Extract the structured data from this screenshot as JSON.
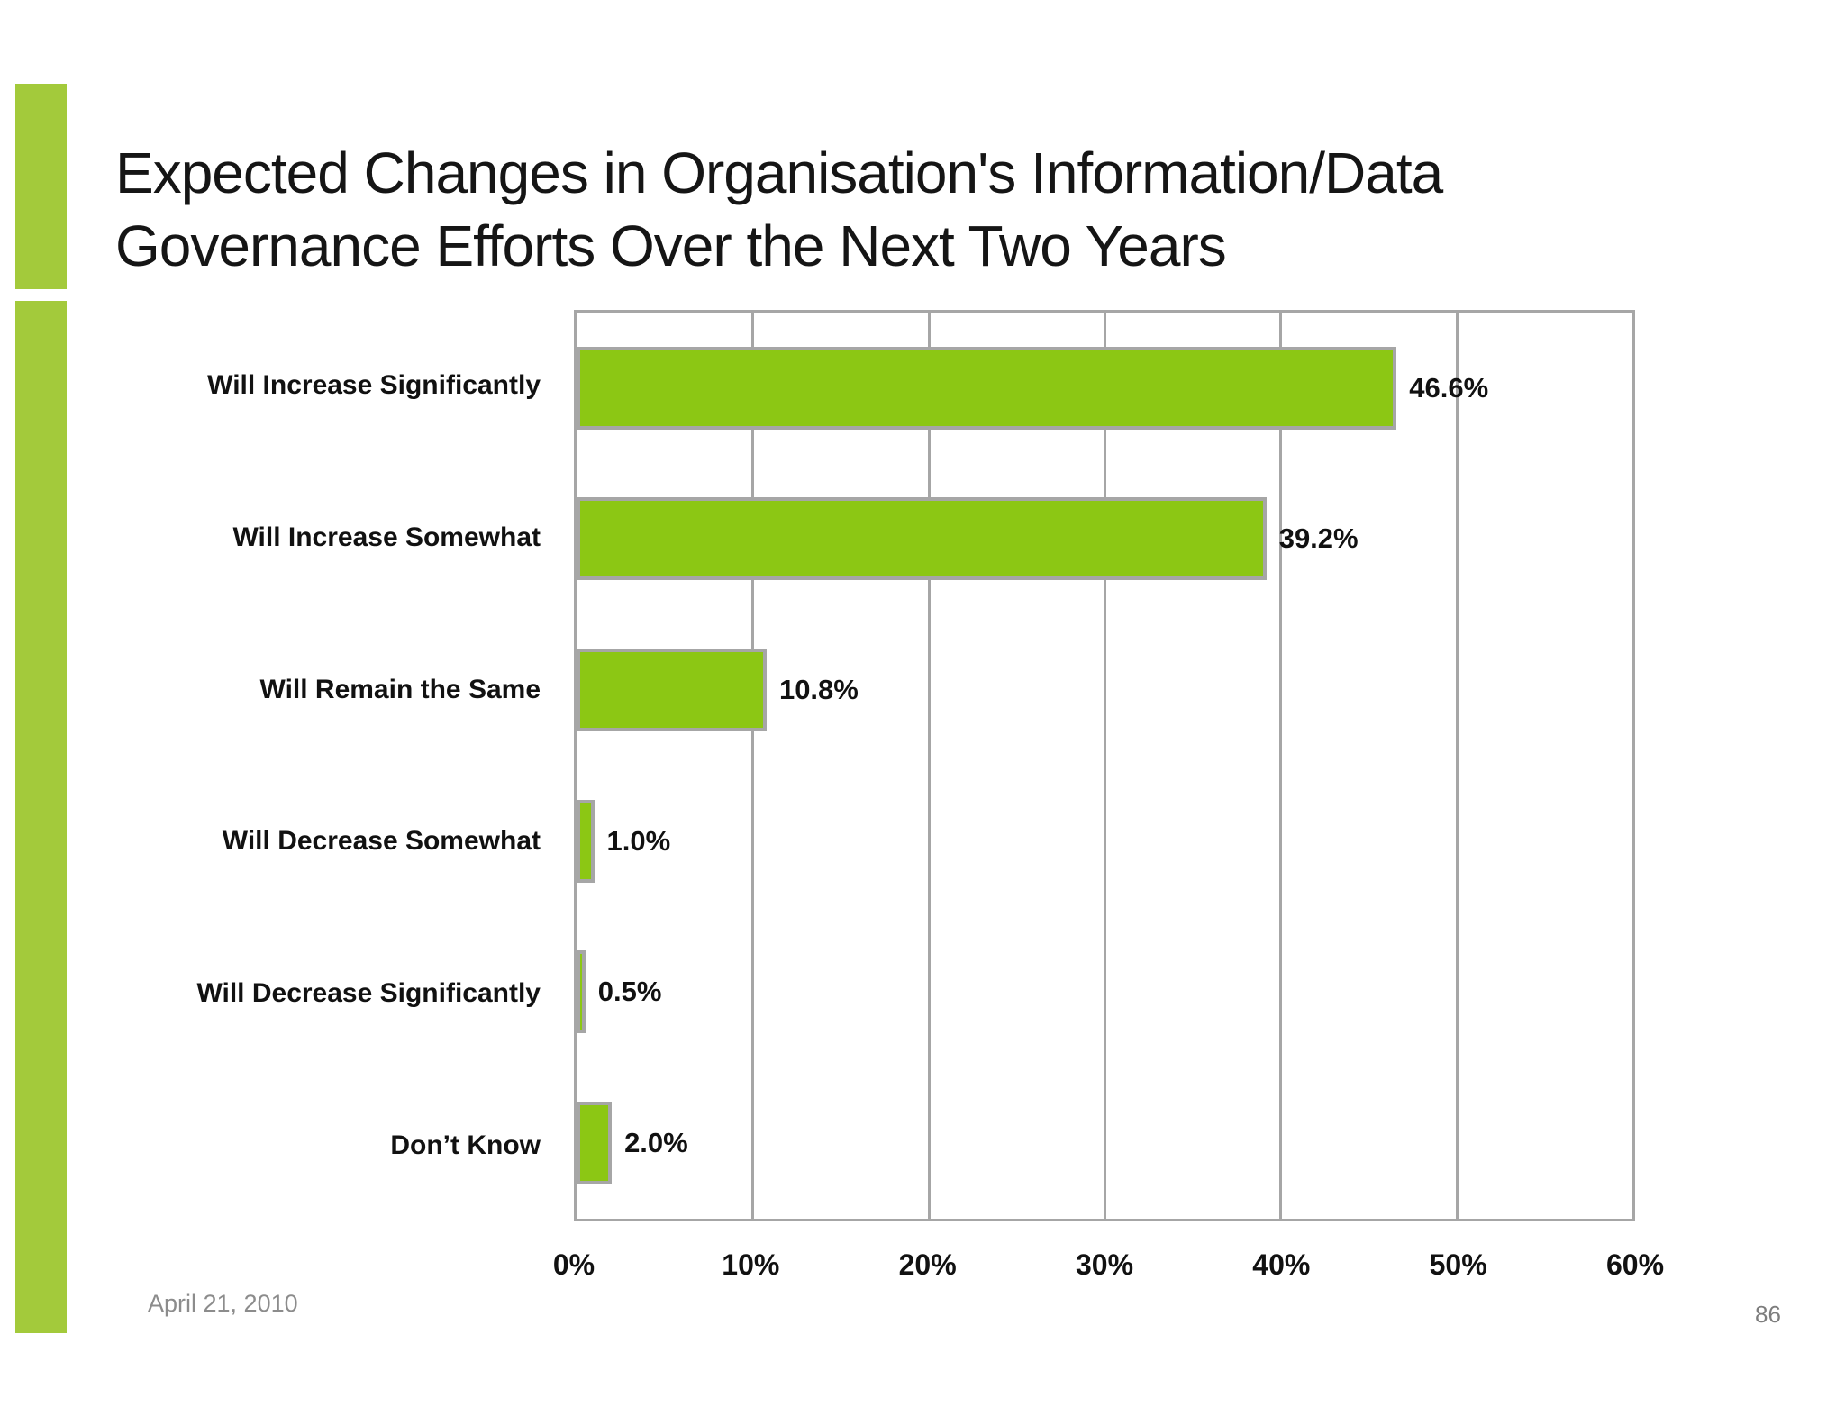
{
  "slide": {
    "title": "Expected Changes in Organisation's Information/Data Governance Efforts Over the Next Two Years",
    "footer": {
      "date": "April 21, 2010",
      "page_number": "86"
    }
  },
  "colors": {
    "bar_fill": "#8CC714",
    "bar_border": "#A6A6A6",
    "gridline": "#A6A6A6",
    "plot_border": "#A6A6A6",
    "accent_bar": "#A3CA3B",
    "title_text": "#151515",
    "label_text": "#111111",
    "footer_text": "#8C8C8C"
  },
  "chart_data": {
    "type": "bar",
    "orientation": "horizontal",
    "title": "",
    "xlabel": "",
    "ylabel": "",
    "categories": [
      "Will Increase Significantly",
      "Will Increase Somewhat",
      "Will Remain the Same",
      "Will Decrease Somewhat",
      "Will Decrease Significantly",
      "Don’t Know"
    ],
    "values": [
      46.6,
      39.2,
      10.8,
      1.0,
      0.5,
      2.0
    ],
    "value_labels": [
      "46.6%",
      "39.2%",
      "10.8%",
      "1.0%",
      "0.5%",
      "2.0%"
    ],
    "xlim": [
      0,
      60
    ],
    "x_ticks": [
      0,
      10,
      20,
      30,
      40,
      50,
      60
    ],
    "x_tick_labels": [
      "0%",
      "10%",
      "20%",
      "30%",
      "40%",
      "50%",
      "60%"
    ],
    "grid": true,
    "legend": false
  }
}
